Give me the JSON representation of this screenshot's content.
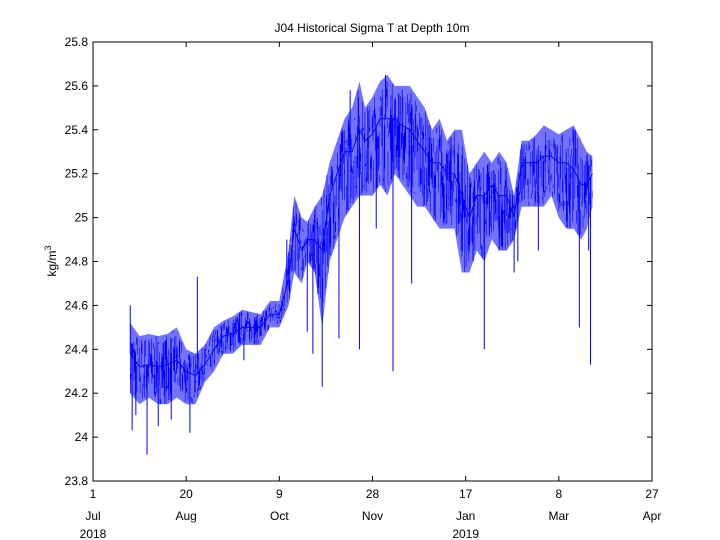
{
  "chart_data": {
    "type": "line",
    "title": "J04 Historical Sigma T at Depth 10m",
    "ylabel_base": "kg/m",
    "ylabel_sup": "3",
    "xlabel": "",
    "ylim": [
      23.8,
      25.8
    ],
    "xlim": [
      "2018-07-01",
      "2019-04-27"
    ],
    "y_ticks": [
      "23.8",
      "24",
      "24.2",
      "24.4",
      "24.6",
      "24.8",
      "25",
      "25.2",
      "25.4",
      "25.6",
      "25.8"
    ],
    "x_ticks": [
      {
        "date": "2018-07-01",
        "day": "1",
        "month": "Jul",
        "year": "2018"
      },
      {
        "date": "2018-08-20",
        "day": "20",
        "month": "Aug",
        "year": ""
      },
      {
        "date": "2018-10-09",
        "day": "9",
        "month": "Oct",
        "year": ""
      },
      {
        "date": "2018-11-28",
        "day": "28",
        "month": "Nov",
        "year": ""
      },
      {
        "date": "2019-01-17",
        "day": "17",
        "month": "Jan",
        "year": "2019"
      },
      {
        "date": "2019-03-08",
        "day": "8",
        "month": "Mar",
        "year": ""
      },
      {
        "date": "2019-04-27",
        "day": "27",
        "month": "Apr",
        "year": ""
      }
    ],
    "grid": false,
    "color": "#0000ff",
    "series": [
      {
        "x": [
          "2018-07-21",
          "2018-07-26",
          "2018-07-31",
          "2018-08-05",
          "2018-08-10",
          "2018-08-15",
          "2018-08-20",
          "2018-08-25",
          "2018-08-30",
          "2018-09-04",
          "2018-09-09",
          "2018-09-14",
          "2018-09-19",
          "2018-09-24",
          "2018-09-29",
          "2018-10-04",
          "2018-10-09",
          "2018-10-14",
          "2018-10-17",
          "2018-10-21",
          "2018-10-24",
          "2018-10-28",
          "2018-11-01",
          "2018-11-05",
          "2018-11-09",
          "2018-11-13",
          "2018-11-17",
          "2018-11-21",
          "2018-11-24",
          "2018-11-28",
          "2018-12-02",
          "2018-12-06",
          "2018-12-10",
          "2018-12-14",
          "2018-12-18",
          "2018-12-22",
          "2018-12-26",
          "2018-12-30",
          "2019-01-03",
          "2019-01-07",
          "2019-01-11",
          "2019-01-15",
          "2019-01-19",
          "2019-01-23",
          "2019-01-27",
          "2019-01-31",
          "2019-02-04",
          "2019-02-08",
          "2019-02-12",
          "2019-02-16",
          "2019-02-20",
          "2019-02-24",
          "2019-02-28",
          "2019-03-04",
          "2019-03-08",
          "2019-03-12",
          "2019-03-16",
          "2019-03-20",
          "2019-03-23",
          "2019-03-26"
        ],
        "high": [
          24.52,
          24.46,
          24.47,
          24.46,
          24.47,
          24.5,
          24.4,
          24.38,
          24.42,
          24.5,
          24.53,
          24.55,
          24.58,
          24.57,
          24.56,
          24.62,
          24.62,
          24.85,
          25.1,
          25.0,
          24.98,
          25.05,
          25.1,
          25.25,
          25.35,
          25.45,
          25.5,
          25.62,
          25.5,
          25.55,
          25.62,
          25.65,
          25.6,
          25.6,
          25.6,
          25.55,
          25.5,
          25.4,
          25.45,
          25.35,
          25.4,
          25.4,
          25.2,
          25.25,
          25.3,
          25.25,
          25.3,
          25.25,
          25.1,
          25.35,
          25.35,
          25.38,
          25.42,
          25.4,
          25.38,
          25.4,
          25.42,
          25.35,
          25.3,
          25.28
        ],
        "low": [
          24.2,
          24.15,
          24.18,
          24.15,
          24.15,
          24.18,
          24.15,
          24.15,
          24.25,
          24.3,
          24.38,
          24.38,
          24.42,
          24.42,
          24.42,
          24.5,
          24.5,
          24.6,
          24.75,
          24.7,
          24.8,
          24.75,
          24.5,
          24.8,
          24.9,
          25.0,
          25.05,
          25.1,
          25.1,
          25.1,
          25.15,
          25.1,
          25.2,
          25.15,
          25.1,
          25.05,
          25.05,
          25.0,
          24.95,
          24.95,
          24.95,
          24.75,
          24.75,
          24.85,
          24.8,
          24.9,
          24.85,
          24.85,
          24.9,
          25.05,
          25.05,
          25.05,
          25.05,
          25.1,
          25.0,
          24.95,
          24.95,
          24.9,
          24.95,
          25.05
        ],
        "mean": [
          24.38,
          24.32,
          24.33,
          24.32,
          24.33,
          24.35,
          24.3,
          24.28,
          24.33,
          24.4,
          24.46,
          24.47,
          24.5,
          24.5,
          24.5,
          24.56,
          24.56,
          24.72,
          24.95,
          24.85,
          24.9,
          24.9,
          24.85,
          25.1,
          25.2,
          25.3,
          25.3,
          25.4,
          25.35,
          25.38,
          25.45,
          25.45,
          25.45,
          25.42,
          25.4,
          25.35,
          25.3,
          25.25,
          25.25,
          25.2,
          25.2,
          25.1,
          25.0,
          25.1,
          25.1,
          25.15,
          25.1,
          25.1,
          25.0,
          25.25,
          25.25,
          25.25,
          25.28,
          25.28,
          25.25,
          25.25,
          25.22,
          25.15,
          25.15,
          25.2
        ],
        "spikes": [
          [
            "2018-07-21",
            24.6
          ],
          [
            "2018-07-22",
            24.03
          ],
          [
            "2018-07-24",
            24.1
          ],
          [
            "2018-07-30",
            23.92
          ],
          [
            "2018-08-05",
            24.05
          ],
          [
            "2018-08-12",
            24.08
          ],
          [
            "2018-08-22",
            24.02
          ],
          [
            "2018-08-26",
            24.73
          ],
          [
            "2018-09-02",
            24.32
          ],
          [
            "2018-09-20",
            24.35
          ],
          [
            "2018-10-13",
            24.9
          ],
          [
            "2018-10-24",
            24.48
          ],
          [
            "2018-10-27",
            24.38
          ],
          [
            "2018-11-01",
            24.23
          ],
          [
            "2018-11-10",
            24.45
          ],
          [
            "2018-11-16",
            25.58
          ],
          [
            "2018-11-21",
            24.4
          ],
          [
            "2018-11-30",
            24.95
          ],
          [
            "2018-12-05",
            25.65
          ],
          [
            "2018-12-09",
            24.3
          ],
          [
            "2018-12-19",
            24.7
          ],
          [
            "2019-01-21",
            24.8
          ],
          [
            "2019-01-27",
            24.4
          ],
          [
            "2019-02-04",
            24.85
          ],
          [
            "2019-02-12",
            24.75
          ],
          [
            "2019-02-14",
            24.8
          ],
          [
            "2019-02-25",
            24.85
          ],
          [
            "2019-03-14",
            24.95
          ],
          [
            "2019-03-19",
            24.5
          ],
          [
            "2019-03-24",
            24.85
          ],
          [
            "2019-03-25",
            24.33
          ]
        ]
      }
    ]
  }
}
